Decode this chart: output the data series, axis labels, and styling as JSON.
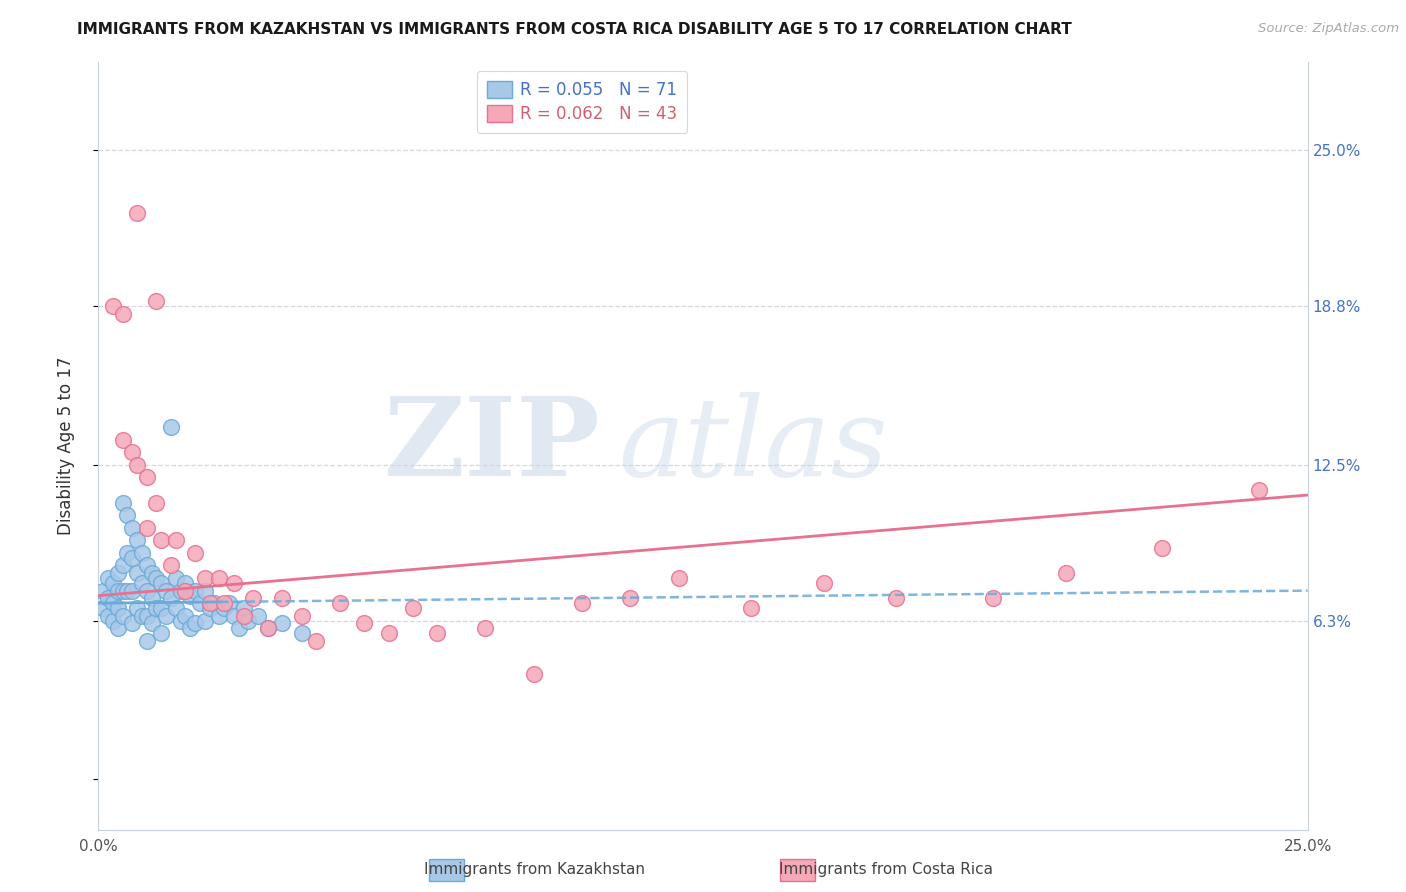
{
  "title": "IMMIGRANTS FROM KAZAKHSTAN VS IMMIGRANTS FROM COSTA RICA DISABILITY AGE 5 TO 17 CORRELATION CHART",
  "source": "Source: ZipAtlas.com",
  "ylabel": "Disability Age 5 to 17",
  "legend_label1": "Immigrants from Kazakhstan",
  "legend_label2": "Immigrants from Costa Rica",
  "r1": 0.055,
  "n1": 71,
  "r2": 0.062,
  "n2": 43,
  "xlim": [
    0.0,
    0.25
  ],
  "ylim": [
    -0.02,
    0.285
  ],
  "color_kaz": "#a8c8e8",
  "color_costa": "#f4a8b8",
  "edge_kaz": "#6aaad8",
  "edge_costa": "#e87090",
  "background_color": "#ffffff",
  "grid_color": "#d0d8e4",
  "yticks_right": [
    0.063,
    0.125,
    0.188,
    0.25
  ],
  "ytick_right_labels": [
    "6.3%",
    "12.5%",
    "18.8%",
    "25.0%"
  ],
  "kaz_x": [
    0.001,
    0.001,
    0.002,
    0.002,
    0.002,
    0.003,
    0.003,
    0.003,
    0.004,
    0.004,
    0.004,
    0.004,
    0.005,
    0.005,
    0.005,
    0.005,
    0.006,
    0.006,
    0.006,
    0.007,
    0.007,
    0.007,
    0.007,
    0.008,
    0.008,
    0.008,
    0.009,
    0.009,
    0.009,
    0.01,
    0.01,
    0.01,
    0.01,
    0.011,
    0.011,
    0.011,
    0.012,
    0.012,
    0.013,
    0.013,
    0.013,
    0.014,
    0.014,
    0.015,
    0.015,
    0.016,
    0.016,
    0.017,
    0.017,
    0.018,
    0.018,
    0.019,
    0.019,
    0.02,
    0.02,
    0.021,
    0.022,
    0.022,
    0.023,
    0.024,
    0.025,
    0.026,
    0.027,
    0.028,
    0.029,
    0.03,
    0.031,
    0.033,
    0.035,
    0.038,
    0.042
  ],
  "kaz_y": [
    0.075,
    0.068,
    0.08,
    0.072,
    0.065,
    0.078,
    0.07,
    0.063,
    0.082,
    0.075,
    0.068,
    0.06,
    0.11,
    0.085,
    0.075,
    0.065,
    0.105,
    0.09,
    0.075,
    0.1,
    0.088,
    0.075,
    0.062,
    0.095,
    0.082,
    0.068,
    0.09,
    0.078,
    0.065,
    0.085,
    0.075,
    0.065,
    0.055,
    0.082,
    0.072,
    0.062,
    0.08,
    0.068,
    0.078,
    0.068,
    0.058,
    0.075,
    0.065,
    0.14,
    0.072,
    0.08,
    0.068,
    0.075,
    0.063,
    0.078,
    0.065,
    0.073,
    0.06,
    0.075,
    0.062,
    0.07,
    0.075,
    0.063,
    0.068,
    0.07,
    0.065,
    0.068,
    0.07,
    0.065,
    0.06,
    0.068,
    0.063,
    0.065,
    0.06,
    0.062,
    0.058
  ],
  "costa_x": [
    0.008,
    0.012,
    0.003,
    0.005,
    0.005,
    0.007,
    0.008,
    0.01,
    0.01,
    0.012,
    0.013,
    0.015,
    0.016,
    0.018,
    0.02,
    0.022,
    0.023,
    0.025,
    0.026,
    0.028,
    0.03,
    0.032,
    0.035,
    0.038,
    0.042,
    0.045,
    0.05,
    0.055,
    0.06,
    0.065,
    0.07,
    0.08,
    0.09,
    0.1,
    0.11,
    0.12,
    0.135,
    0.15,
    0.165,
    0.185,
    0.2,
    0.22,
    0.24
  ],
  "costa_y": [
    0.225,
    0.19,
    0.188,
    0.185,
    0.135,
    0.13,
    0.125,
    0.12,
    0.1,
    0.11,
    0.095,
    0.085,
    0.095,
    0.075,
    0.09,
    0.08,
    0.07,
    0.08,
    0.07,
    0.078,
    0.065,
    0.072,
    0.06,
    0.072,
    0.065,
    0.055,
    0.07,
    0.062,
    0.058,
    0.068,
    0.058,
    0.06,
    0.042,
    0.07,
    0.072,
    0.08,
    0.068,
    0.078,
    0.072,
    0.072,
    0.082,
    0.092,
    0.115
  ],
  "kaz_trend_x": [
    0.0,
    0.25
  ],
  "kaz_trend_y": [
    0.07,
    0.075
  ],
  "costa_trend_x": [
    0.0,
    0.25
  ],
  "costa_trend_y": [
    0.073,
    0.113
  ],
  "watermark_zip_color": "#c8d8e8",
  "watermark_atlas_color": "#c8d8e8",
  "title_fontsize": 11,
  "legend_fontsize": 12,
  "tick_fontsize": 11,
  "right_tick_color": "#4472c4"
}
